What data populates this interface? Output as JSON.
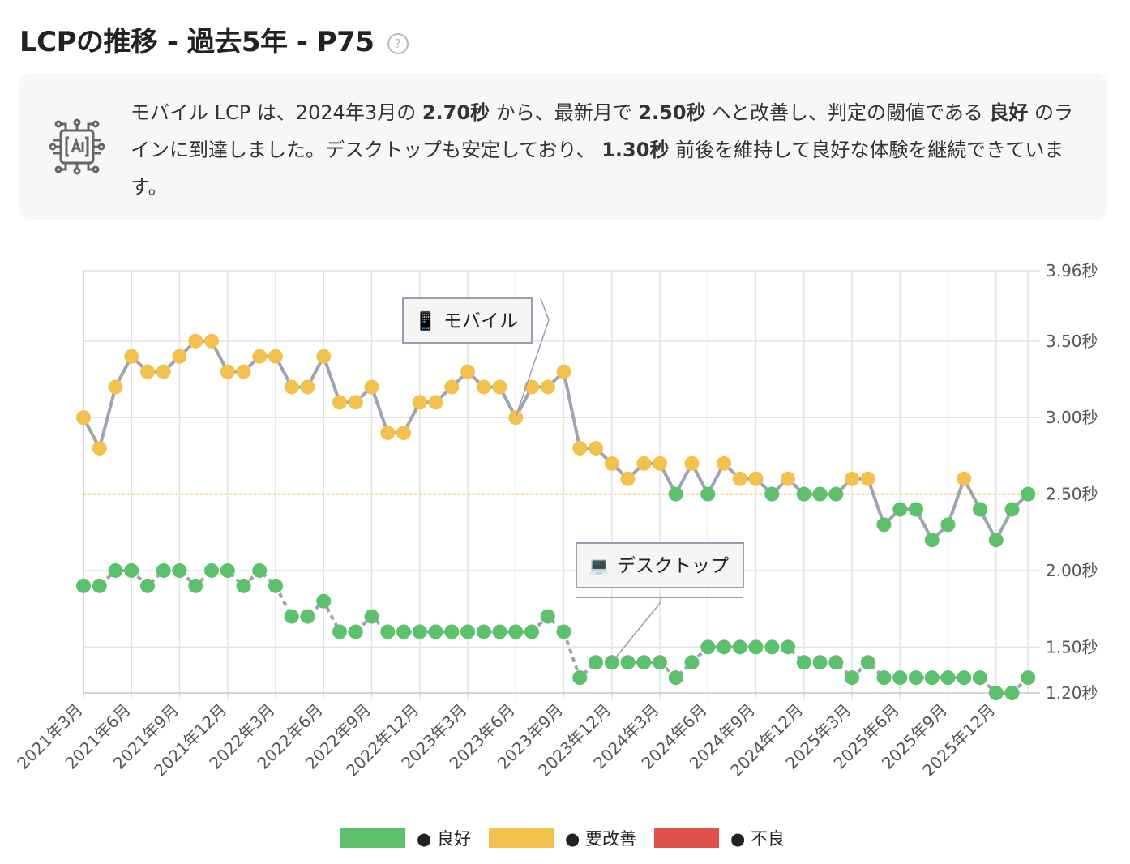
{
  "title": "LCPの推移 - 過去5年 - P75",
  "help_icon": "question-circle-icon",
  "summary": {
    "icon": "ai-chip-icon",
    "parts": [
      "モバイル LCP は、2024年3月の ",
      "2.70秒",
      " から、最新月で ",
      "2.50秒",
      " へと改善し、判定の閾値である ",
      "良好",
      " のラインに到達しました。デスクトップも安定しており、 ",
      "1.30秒",
      " 前後を維持して良好な体験を継続できています。"
    ]
  },
  "chart_data": {
    "type": "line",
    "x_start": "2021-03",
    "x": [
      "2021-03",
      "2021-04",
      "2021-05",
      "2021-06",
      "2021-07",
      "2021-08",
      "2021-09",
      "2021-10",
      "2021-11",
      "2021-12",
      "2022-01",
      "2022-02",
      "2022-03",
      "2022-04",
      "2022-05",
      "2022-06",
      "2022-07",
      "2022-08",
      "2022-09",
      "2022-10",
      "2022-11",
      "2022-12",
      "2023-01",
      "2023-02",
      "2023-03",
      "2023-04",
      "2023-05",
      "2023-06",
      "2023-07",
      "2023-08",
      "2023-09",
      "2023-10",
      "2023-11",
      "2023-12",
      "2024-01",
      "2024-02",
      "2024-03",
      "2024-04",
      "2024-05",
      "2024-06",
      "2024-07",
      "2024-08",
      "2024-09",
      "2024-10",
      "2024-11",
      "2024-12",
      "2025-01",
      "2025-02",
      "2025-03",
      "2025-04",
      "2025-05",
      "2025-06",
      "2025-07",
      "2025-08",
      "2025-09",
      "2025-10",
      "2025-11",
      "2025-12",
      "2026-01",
      "2026-02"
    ],
    "x_tick_labels": [
      "2021年3月",
      "2021年6月",
      "2021年9月",
      "2021年12月",
      "2022年3月",
      "2022年6月",
      "2022年9月",
      "2022年12月",
      "2023年3月",
      "2023年6月",
      "2023年9月",
      "2023年12月",
      "2024年3月",
      "2024年6月",
      "2024年9月",
      "2024年12月",
      "2025年3月",
      "2025年6月",
      "2025年9月",
      "2025年12月"
    ],
    "y_ticks": [
      1.2,
      1.5,
      2.0,
      2.5,
      3.0,
      3.5,
      3.96
    ],
    "y_tick_labels": [
      "1.20秒",
      "1.50秒",
      "2.00秒",
      "2.50秒",
      "3.00秒",
      "3.50秒",
      "3.96秒"
    ],
    "ylim": [
      1.2,
      3.96
    ],
    "y_axis_position": "right",
    "grid": true,
    "threshold": 2.5,
    "series": [
      {
        "name": "モバイル",
        "icon": "mobile-phone-icon",
        "line_style": "solid",
        "values": [
          3.0,
          2.8,
          3.2,
          3.4,
          3.3,
          3.3,
          3.4,
          3.5,
          3.5,
          3.3,
          3.3,
          3.4,
          3.4,
          3.2,
          3.2,
          3.4,
          3.1,
          3.1,
          3.2,
          2.9,
          2.9,
          3.1,
          3.1,
          3.2,
          3.3,
          3.2,
          3.2,
          3.0,
          3.2,
          3.2,
          3.3,
          2.8,
          2.8,
          2.7,
          2.6,
          2.7,
          2.7,
          2.5,
          2.7,
          2.5,
          2.7,
          2.6,
          2.6,
          2.5,
          2.6,
          2.5,
          2.5,
          2.5,
          2.6,
          2.6,
          2.3,
          2.4,
          2.4,
          2.2,
          2.3,
          2.6,
          2.4,
          2.2,
          2.4,
          2.5
        ]
      },
      {
        "name": "デスクトップ",
        "icon": "laptop-icon",
        "line_style": "dashed",
        "values": [
          1.9,
          1.9,
          2.0,
          2.0,
          1.9,
          2.0,
          2.0,
          1.9,
          2.0,
          2.0,
          1.9,
          2.0,
          1.9,
          1.7,
          1.7,
          1.8,
          1.6,
          1.6,
          1.7,
          1.6,
          1.6,
          1.6,
          1.6,
          1.6,
          1.6,
          1.6,
          1.6,
          1.6,
          1.6,
          1.7,
          1.6,
          1.3,
          1.4,
          1.4,
          1.4,
          1.4,
          1.4,
          1.3,
          1.4,
          1.5,
          1.5,
          1.5,
          1.5,
          1.5,
          1.5,
          1.4,
          1.4,
          1.4,
          1.3,
          1.4,
          1.3,
          1.3,
          1.3,
          1.3,
          1.3,
          1.3,
          1.3,
          1.2,
          1.2,
          1.3
        ]
      }
    ],
    "legend": {
      "placement": "bottom",
      "items": [
        {
          "label": "● 良好",
          "color": "#5cc16a"
        },
        {
          "label": "● 要改善",
          "color": "#f2c14e"
        },
        {
          "label": "● 不良",
          "color": "#e0524b"
        }
      ]
    },
    "colors": {
      "line": "#a0a3b0",
      "good": "#5cc16a",
      "needs_improvement": "#f2c14e",
      "poor": "#e0524b",
      "grid": "#e3e3e3",
      "threshold": "#f2c14e"
    }
  }
}
